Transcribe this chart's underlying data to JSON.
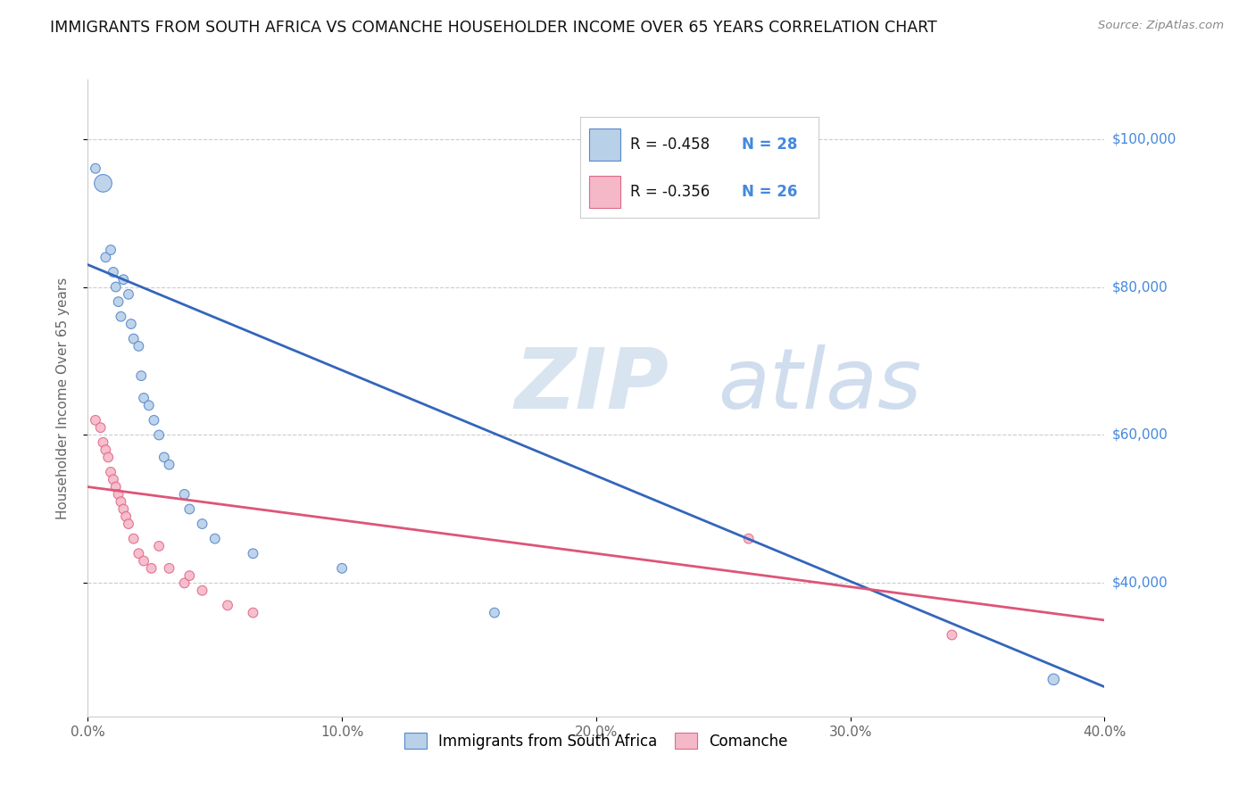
{
  "title": "IMMIGRANTS FROM SOUTH AFRICA VS COMANCHE HOUSEHOLDER INCOME OVER 65 YEARS CORRELATION CHART",
  "source": "Source: ZipAtlas.com",
  "ylabel": "Householder Income Over 65 years",
  "xlim": [
    0.0,
    0.4
  ],
  "ylim": [
    22000,
    108000
  ],
  "xtick_labels": [
    "0.0%",
    "10.0%",
    "20.0%",
    "30.0%",
    "40.0%"
  ],
  "xtick_values": [
    0.0,
    0.1,
    0.2,
    0.3,
    0.4
  ],
  "ytick_labels": [
    "$100,000",
    "$80,000",
    "$60,000",
    "$40,000"
  ],
  "ytick_values": [
    100000,
    80000,
    60000,
    40000
  ],
  "blue_r": "-0.458",
  "blue_n": "28",
  "pink_r": "-0.356",
  "pink_n": "26",
  "blue_fill": "#b8d0e8",
  "pink_fill": "#f5b8c8",
  "blue_edge": "#5588cc",
  "pink_edge": "#e06888",
  "blue_line": "#3366bb",
  "pink_line": "#dd5577",
  "legend_label_blue": "Immigrants from South Africa",
  "legend_label_pink": "Comanche",
  "blue_trend_x": [
    0.0,
    0.4
  ],
  "blue_trend_y": [
    83000,
    26000
  ],
  "pink_trend_x": [
    0.0,
    0.4
  ],
  "pink_trend_y": [
    53000,
    35000
  ],
  "blue_scatter_x": [
    0.003,
    0.006,
    0.007,
    0.009,
    0.01,
    0.011,
    0.012,
    0.013,
    0.014,
    0.016,
    0.017,
    0.018,
    0.02,
    0.021,
    0.022,
    0.024,
    0.026,
    0.028,
    0.03,
    0.032,
    0.038,
    0.04,
    0.045,
    0.05,
    0.065,
    0.1,
    0.16,
    0.38
  ],
  "blue_scatter_y": [
    96000,
    94000,
    84000,
    85000,
    82000,
    80000,
    78000,
    76000,
    81000,
    79000,
    75000,
    73000,
    72000,
    68000,
    65000,
    64000,
    62000,
    60000,
    57000,
    56000,
    52000,
    50000,
    48000,
    46000,
    44000,
    42000,
    36000,
    27000
  ],
  "blue_scatter_sizes": [
    60,
    200,
    60,
    60,
    60,
    60,
    60,
    60,
    60,
    60,
    60,
    60,
    60,
    60,
    60,
    60,
    60,
    60,
    60,
    60,
    60,
    60,
    60,
    60,
    60,
    60,
    60,
    80
  ],
  "pink_scatter_x": [
    0.003,
    0.005,
    0.006,
    0.007,
    0.008,
    0.009,
    0.01,
    0.011,
    0.012,
    0.013,
    0.014,
    0.015,
    0.016,
    0.018,
    0.02,
    0.022,
    0.025,
    0.028,
    0.032,
    0.038,
    0.04,
    0.045,
    0.055,
    0.065,
    0.26,
    0.34
  ],
  "pink_scatter_y": [
    62000,
    61000,
    59000,
    58000,
    57000,
    55000,
    54000,
    53000,
    52000,
    51000,
    50000,
    49000,
    48000,
    46000,
    44000,
    43000,
    42000,
    45000,
    42000,
    40000,
    41000,
    39000,
    37000,
    36000,
    46000,
    33000
  ],
  "pink_scatter_sizes": [
    60,
    60,
    60,
    60,
    60,
    60,
    60,
    60,
    60,
    60,
    60,
    60,
    60,
    60,
    60,
    60,
    60,
    60,
    60,
    60,
    60,
    60,
    60,
    60,
    60,
    60
  ],
  "background_color": "#ffffff",
  "grid_color": "#cccccc",
  "title_color": "#111111",
  "axis_label_color": "#666666",
  "right_label_color": "#4488dd",
  "stats_text_color": "#111111"
}
